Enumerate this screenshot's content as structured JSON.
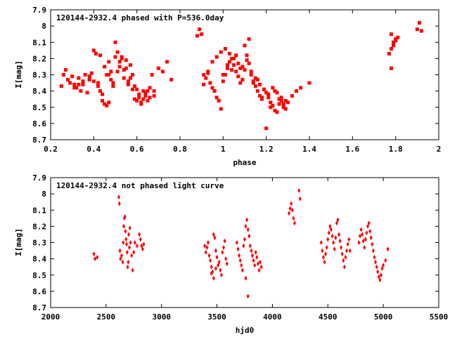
{
  "chart_data": [
    {
      "type": "scatter",
      "title": "120144-2932.4 phased with P=536.0day",
      "xlabel": "phase",
      "ylabel": "I[mag]",
      "xlim": [
        0.2,
        2.0
      ],
      "ylim": [
        8.7,
        7.9
      ],
      "y_inverted": true,
      "xticks": [
        "0.2",
        "0.4",
        "0.6",
        "0.8",
        "1",
        "1.2",
        "1.4",
        "1.6",
        "1.8",
        "2"
      ],
      "yticks": [
        "7.9",
        "8",
        "8.1",
        "8.2",
        "8.3",
        "8.4",
        "8.5",
        "8.6",
        "8.7"
      ],
      "marker": "filled-square",
      "color": "#ff0000",
      "grid": false,
      "series": [
        {
          "x": [
            0.25,
            0.26,
            0.27,
            0.28,
            0.29,
            0.3,
            0.31,
            0.32,
            0.33,
            0.34,
            0.35,
            0.36,
            0.37,
            0.38,
            0.39,
            0.4,
            0.41,
            0.42,
            0.43,
            0.44,
            0.45,
            0.46,
            0.47,
            0.48,
            0.49,
            0.5,
            0.51,
            0.52,
            0.53,
            0.54,
            0.55,
            0.56,
            0.57,
            0.58,
            0.59,
            0.6,
            0.61,
            0.62,
            0.63,
            0.64,
            0.65,
            0.66,
            0.67,
            0.68,
            0.7,
            0.72,
            0.74,
            0.76,
            0.38,
            0.4,
            0.42,
            0.44,
            0.46,
            0.47,
            0.48,
            0.5,
            0.52,
            0.54,
            0.56,
            0.58,
            0.6,
            0.62,
            0.64,
            0.66,
            0.68,
            0.45,
            0.47,
            0.49,
            0.51,
            0.53,
            0.57,
            0.59,
            0.61,
            0.63,
            0.65,
            0.43,
            0.55,
            0.35,
            0.31,
            0.33,
            0.88,
            0.89,
            0.9,
            0.91,
            0.92,
            0.93,
            0.94,
            0.95,
            0.96,
            0.97,
            0.98,
            0.99,
            1.0,
            1.01,
            1.02,
            1.03,
            1.04,
            1.05,
            1.06,
            1.07,
            1.08,
            1.09,
            1.1,
            1.11,
            1.12,
            1.13,
            1.14,
            1.15,
            1.16,
            1.17,
            1.18,
            1.19,
            1.2,
            1.21,
            1.22,
            1.23,
            1.24,
            1.25,
            1.26,
            1.27,
            1.28,
            1.29,
            1.3,
            1.32,
            1.34,
            1.36,
            1.4,
            0.95,
            0.97,
            0.99,
            1.01,
            1.03,
            1.05,
            1.07,
            1.09,
            1.11,
            1.13,
            1.15,
            1.17,
            1.19,
            1.21,
            1.23,
            1.25,
            1.27,
            1.29,
            0.93,
            1.02,
            1.06,
            1.1,
            1.14,
            1.18,
            1.22,
            1.26,
            1.08,
            1.12,
            1.16,
            1.2,
            1.24,
            1.28,
            1.0,
            1.04,
            0.91,
            1.77,
            1.78,
            1.78,
            1.79,
            1.79,
            1.8,
            1.8,
            1.81,
            1.78,
            1.9,
            1.91,
            1.92
          ],
          "y": [
            8.37,
            8.3,
            8.27,
            8.33,
            8.35,
            8.31,
            8.36,
            8.38,
            8.32,
            8.4,
            8.36,
            8.3,
            8.41,
            8.33,
            8.29,
            8.15,
            8.17,
            8.35,
            8.4,
            8.46,
            8.48,
            8.3,
            8.22,
            8.33,
            8.37,
            8.1,
            8.28,
            8.25,
            8.19,
            8.32,
            8.21,
            8.36,
            8.24,
            8.3,
            8.45,
            8.39,
            8.42,
            8.47,
            8.4,
            8.43,
            8.46,
            8.44,
            8.3,
            8.4,
            8.26,
            8.28,
            8.22,
            8.33,
            8.31,
            8.34,
            8.37,
            8.42,
            8.49,
            8.47,
            8.28,
            8.19,
            8.22,
            8.27,
            8.34,
            8.39,
            8.46,
            8.48,
            8.41,
            8.38,
            8.43,
            8.25,
            8.3,
            8.35,
            8.16,
            8.2,
            8.32,
            8.37,
            8.44,
            8.45,
            8.4,
            8.18,
            8.26,
            8.34,
            8.38,
            8.36,
            8.06,
            8.02,
            8.05,
            8.3,
            8.32,
            8.28,
            8.35,
            8.38,
            8.4,
            8.44,
            8.46,
            8.51,
            8.34,
            8.3,
            8.26,
            8.22,
            8.2,
            8.24,
            8.28,
            8.31,
            8.35,
            8.33,
            8.27,
            8.18,
            8.23,
            8.3,
            8.34,
            8.37,
            8.4,
            8.43,
            8.45,
            8.39,
            8.41,
            8.44,
            8.47,
            8.49,
            8.52,
            8.53,
            8.48,
            8.46,
            8.5,
            8.51,
            8.47,
            8.43,
            8.4,
            8.38,
            8.35,
            8.22,
            8.19,
            8.16,
            8.14,
            8.17,
            8.2,
            8.23,
            8.25,
            8.21,
            8.28,
            8.32,
            8.36,
            8.39,
            8.42,
            8.38,
            8.41,
            8.44,
            8.46,
            8.29,
            8.24,
            8.18,
            8.12,
            8.35,
            8.44,
            8.5,
            8.45,
            8.26,
            8.08,
            8.33,
            8.63,
            8.4,
            8.48,
            8.3,
            8.27,
            8.36,
            8.17,
            8.14,
            8.26,
            8.12,
            8.1,
            8.08,
            8.09,
            8.07,
            8.05,
            8.02,
            7.98,
            8.03
          ]
        }
      ]
    },
    {
      "type": "scatter",
      "title": "120144-2932.4 not phased light curve",
      "xlabel": "hjd0",
      "ylabel": "I[mag]",
      "xlim": [
        2000,
        5500
      ],
      "ylim": [
        8.7,
        7.9
      ],
      "y_inverted": true,
      "xticks": [
        "2000",
        "2500",
        "3000",
        "3500",
        "4000",
        "4500",
        "5000",
        "5500"
      ],
      "yticks": [
        "7.9",
        "8",
        "8.1",
        "8.2",
        "8.3",
        "8.4",
        "8.5",
        "8.6",
        "8.7"
      ],
      "marker": "filled-diamond",
      "color": "#ff0000",
      "grid": false,
      "series": [
        {
          "x": [
            2390,
            2400,
            2420,
            2615,
            2620,
            2625,
            2630,
            2640,
            2650,
            2655,
            2660,
            2665,
            2670,
            2675,
            2680,
            2685,
            2690,
            2695,
            2700,
            2705,
            2710,
            2715,
            2720,
            2730,
            2740,
            2750,
            2760,
            2780,
            2800,
            2810,
            2820,
            2830,
            2840,
            3390,
            3400,
            3410,
            3420,
            3430,
            3440,
            3450,
            3460,
            3470,
            3480,
            3490,
            3500,
            3510,
            3520,
            3530,
            3540,
            3550,
            3560,
            3570,
            3580,
            3590,
            3450,
            3470,
            3490,
            3680,
            3690,
            3700,
            3710,
            3720,
            3730,
            3740,
            3750,
            3760,
            3770,
            3780,
            3790,
            3800,
            3810,
            3820,
            3830,
            3840,
            3850,
            3860,
            3870,
            3880,
            3890,
            3900,
            3760,
            3780,
            3820,
            4150,
            4160,
            4170,
            4180,
            4190,
            4200,
            4240,
            4250,
            4440,
            4450,
            4460,
            4470,
            4480,
            4490,
            4500,
            4510,
            4520,
            4530,
            4540,
            4550,
            4560,
            4570,
            4580,
            4590,
            4600,
            4610,
            4620,
            4630,
            4640,
            4650,
            4660,
            4670,
            4680,
            4690,
            4700,
            4780,
            4790,
            4800,
            4810,
            4820,
            4830,
            4840,
            4850,
            4860,
            4870,
            4880,
            4890,
            4900,
            4910,
            4920,
            4930,
            4940,
            4950,
            4960,
            4970,
            4980,
            4990,
            5000,
            5020,
            5040
          ],
          "y": [
            8.37,
            8.4,
            8.39,
            8.02,
            8.06,
            8.35,
            8.4,
            8.38,
            8.42,
            8.3,
            8.2,
            8.15,
            8.14,
            8.23,
            8.28,
            8.31,
            8.36,
            8.45,
            8.42,
            8.25,
            8.33,
            8.21,
            8.3,
            8.38,
            8.47,
            8.36,
            8.3,
            8.32,
            8.25,
            8.28,
            8.32,
            8.34,
            8.31,
            8.32,
            8.36,
            8.33,
            8.3,
            8.38,
            8.41,
            8.45,
            8.48,
            8.25,
            8.27,
            8.35,
            8.39,
            8.44,
            8.42,
            8.47,
            8.5,
            8.36,
            8.33,
            8.29,
            8.4,
            8.43,
            8.49,
            8.52,
            8.46,
            8.3,
            8.34,
            8.38,
            8.41,
            8.44,
            8.47,
            8.32,
            8.28,
            8.2,
            8.16,
            8.22,
            8.26,
            8.32,
            8.35,
            8.38,
            8.41,
            8.44,
            8.36,
            8.39,
            8.43,
            8.47,
            8.42,
            8.45,
            8.52,
            8.63,
            8.38,
            8.12,
            8.09,
            8.06,
            8.1,
            8.15,
            8.18,
            7.98,
            8.03,
            8.3,
            8.35,
            8.39,
            8.42,
            8.37,
            8.33,
            8.28,
            8.24,
            8.2,
            8.22,
            8.26,
            8.3,
            8.34,
            8.27,
            8.18,
            8.16,
            8.25,
            8.29,
            8.33,
            8.37,
            8.41,
            8.45,
            8.39,
            8.35,
            8.31,
            8.28,
            8.35,
            8.3,
            8.26,
            8.22,
            8.25,
            8.29,
            8.33,
            8.28,
            8.24,
            8.2,
            8.18,
            8.23,
            8.27,
            8.31,
            8.35,
            8.39,
            8.42,
            8.45,
            8.48,
            8.51,
            8.53,
            8.5,
            8.46,
            8.44,
            8.41,
            8.34
          ]
        }
      ]
    }
  ]
}
